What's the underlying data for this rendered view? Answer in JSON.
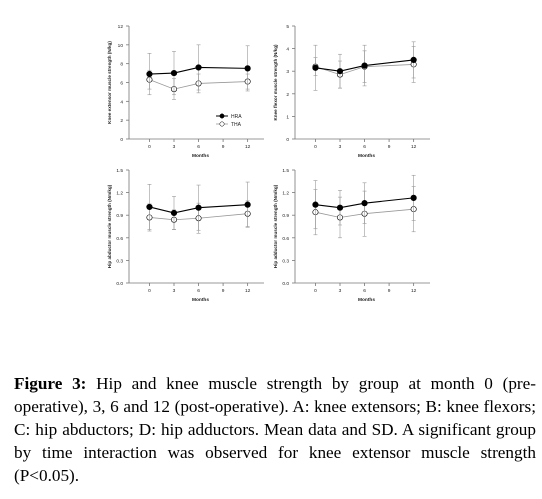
{
  "chart_data": [
    {
      "type": "line",
      "panel": "A",
      "x": [
        0,
        3,
        6,
        12
      ],
      "xticks": [
        "0",
        "3",
        "6",
        "9",
        "12"
      ],
      "xlabel": "Months",
      "ylabel": "Knee extensor muscle strength (N/kg)",
      "ylim": [
        0,
        12
      ],
      "yticks": [
        "0",
        "2",
        "4",
        "6",
        "8",
        "10",
        "12"
      ],
      "grid": false,
      "legend_position": "right",
      "series": [
        {
          "name": "HRA",
          "marker": "filled-circle",
          "values": [
            6.9,
            7.0,
            7.6,
            7.5
          ],
          "sd": [
            2.2,
            2.3,
            2.4,
            2.4
          ]
        },
        {
          "name": "THA",
          "marker": "open-circle",
          "values": [
            6.3,
            5.3,
            5.9,
            6.1
          ],
          "sd": [
            1.0,
            1.1,
            1.0,
            0.8
          ]
        }
      ]
    },
    {
      "type": "line",
      "panel": "B",
      "x": [
        0,
        3,
        6,
        12
      ],
      "xticks": [
        "0",
        "3",
        "6",
        "9",
        "12"
      ],
      "xlabel": "Months",
      "ylabel": "Knee flexor muscle strength (N/kg)",
      "ylim": [
        0,
        5
      ],
      "yticks": [
        "0",
        "1",
        "2",
        "3",
        "4",
        "5"
      ],
      "grid": false,
      "series": [
        {
          "name": "HRA",
          "marker": "filled-circle",
          "values": [
            3.15,
            3.0,
            3.25,
            3.5
          ],
          "sd": [
            1.0,
            0.75,
            0.9,
            0.8
          ]
        },
        {
          "name": "THA",
          "marker": "open-circle",
          "values": [
            3.2,
            2.85,
            3.2,
            3.3
          ],
          "sd": [
            0.4,
            0.6,
            0.7,
            0.8
          ]
        }
      ]
    },
    {
      "type": "line",
      "panel": "C",
      "x": [
        0,
        3,
        6,
        12
      ],
      "xticks": [
        "0",
        "3",
        "6",
        "9",
        "12"
      ],
      "xlabel": "Months",
      "ylabel": "Hip abductor muscle strength (Nm/kg)",
      "ylim": [
        0,
        1.5
      ],
      "yticks": [
        "0.0",
        "0.3",
        "0.6",
        "0.9",
        "1.2",
        "1.5"
      ],
      "grid": false,
      "series": [
        {
          "name": "HRA",
          "marker": "filled-circle",
          "values": [
            1.01,
            0.93,
            1.0,
            1.04
          ],
          "sd": [
            0.3,
            0.22,
            0.3,
            0.3
          ]
        },
        {
          "name": "THA",
          "marker": "open-circle",
          "values": [
            0.87,
            0.84,
            0.86,
            0.92
          ],
          "sd": [
            0.18,
            0.13,
            0.2,
            0.17
          ]
        }
      ]
    },
    {
      "type": "line",
      "panel": "D",
      "x": [
        0,
        3,
        6,
        12
      ],
      "xticks": [
        "0",
        "3",
        "6",
        "9",
        "12"
      ],
      "xlabel": "Months",
      "ylabel": "Hip adductor muscle strength (Nm/kg)",
      "ylim": [
        0,
        1.5
      ],
      "yticks": [
        "0.0",
        "0.3",
        "0.6",
        "0.9",
        "1.2",
        "1.5"
      ],
      "grid": false,
      "series": [
        {
          "name": "HRA",
          "marker": "filled-circle",
          "values": [
            1.04,
            1.0,
            1.06,
            1.13
          ],
          "sd": [
            0.32,
            0.23,
            0.27,
            0.3
          ]
        },
        {
          "name": "THA",
          "marker": "open-circle",
          "values": [
            0.94,
            0.87,
            0.92,
            0.98
          ],
          "sd": [
            0.3,
            0.27,
            0.3,
            0.3
          ]
        }
      ]
    }
  ],
  "caption": {
    "label": "Figure 3:",
    "text": " Hip and knee muscle strength by group at month 0 (pre-operative), 3, 6 and 12 (post-operative). A: knee extensors; B: knee flexors; C: hip abductors; D: hip adductors. Mean data and SD. A significant group by time interaction was observed for knee extensor muscle strength (P<0.05)."
  }
}
